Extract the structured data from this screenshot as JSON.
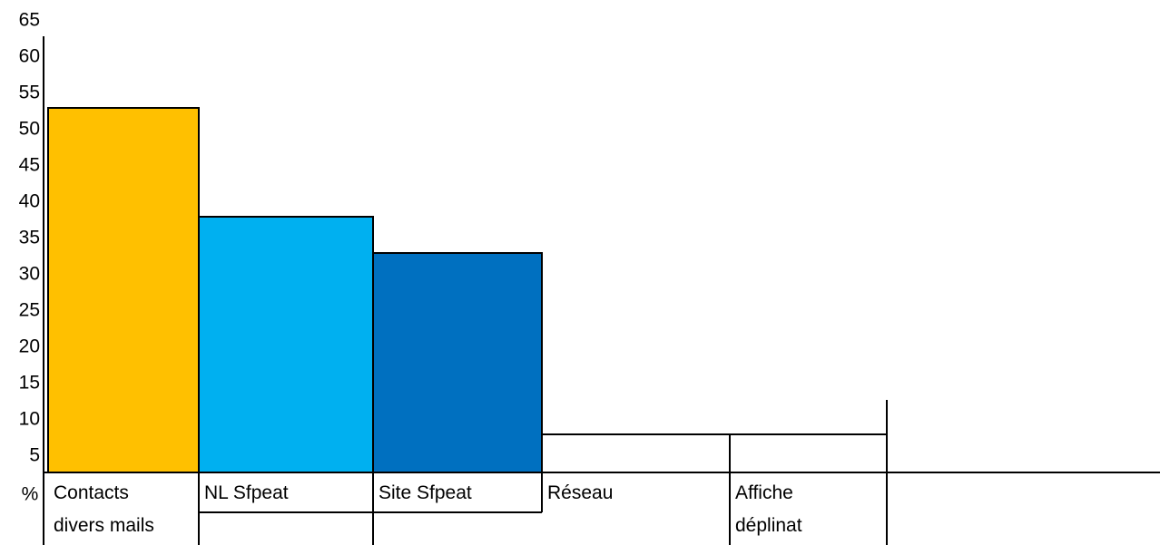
{
  "chart_data": {
    "type": "bar",
    "y_label": "%",
    "categories": [
      "Contacts\ndivers mails",
      "NL Sfpeat",
      "Site Sfpeat",
      "Réseau",
      "Affiche\ndéplinat"
    ],
    "values": [
      53,
      38,
      33,
      8,
      8
    ],
    "colors": [
      "#ffc000",
      "#00b0f0",
      "#0070c0",
      "#ffffff",
      "#ffffff"
    ],
    "ylim": [
      0,
      65
    ],
    "yticks": [
      5,
      10,
      15,
      20,
      25,
      30,
      35,
      40,
      45,
      50,
      55,
      60,
      65
    ],
    "grid": false
  }
}
